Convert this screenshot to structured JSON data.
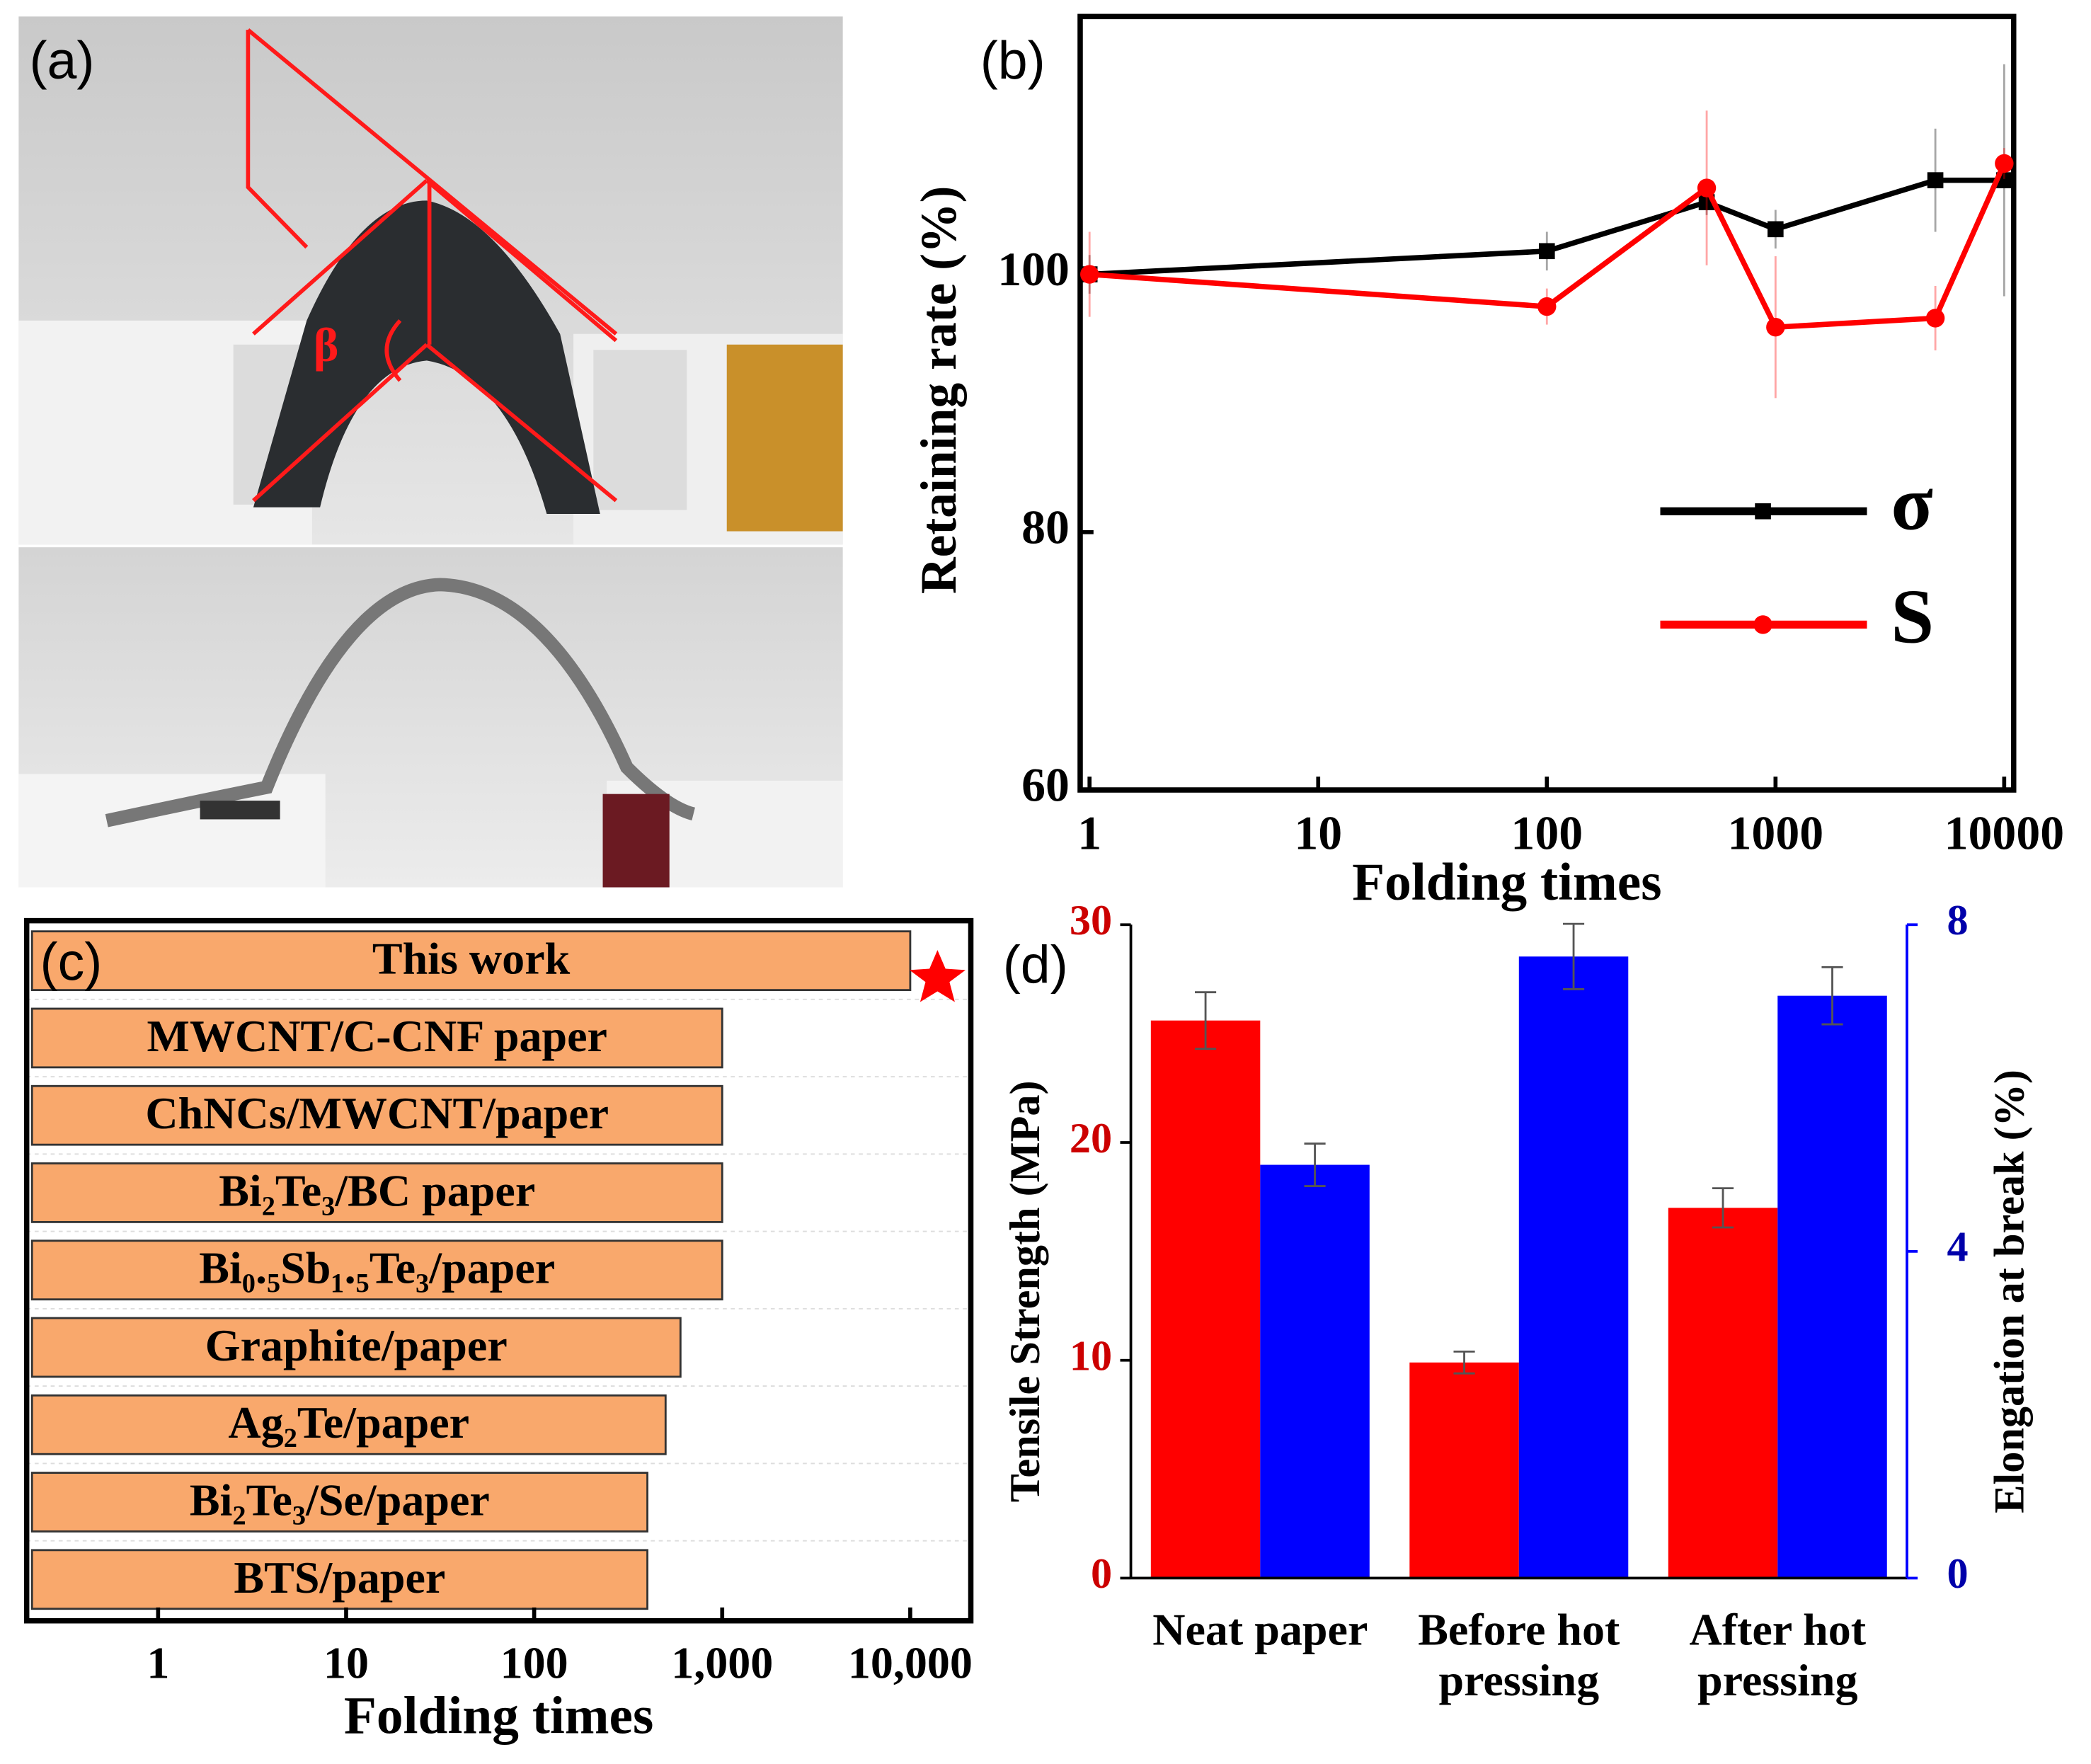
{
  "panel_a": {
    "label": "(a)",
    "angle_label": "β"
  },
  "chart_data": [
    {
      "type": "line",
      "panel_label": "(b)",
      "xlabel": "Folding times",
      "ylabel": "Retaining rate (%)",
      "xscale": "log",
      "x": [
        1,
        100,
        500,
        1000,
        5000,
        10000
      ],
      "series": [
        {
          "name": "σ",
          "color": "#000000",
          "marker": "square",
          "values": [
            100,
            101.8,
            105.6,
            103.5,
            107.3,
            107.3
          ],
          "errors": [
            1.5,
            1.5,
            1,
            1.5,
            4,
            9
          ]
        },
        {
          "name": "S",
          "color": "#ff0000",
          "marker": "circle",
          "values": [
            100,
            97.5,
            106.7,
            95.9,
            96.6,
            108.6
          ],
          "errors": [
            3.3,
            1.4,
            6,
            5.5,
            2.5,
            1.2
          ]
        }
      ],
      "xlim": [
        0.91,
        11000
      ],
      "ylim": [
        60,
        120
      ],
      "xticks": [
        1,
        10,
        100,
        1000,
        10000
      ],
      "yticks": [
        60,
        80,
        100
      ],
      "legend": "lower right"
    },
    {
      "type": "barh",
      "panel_label": "(c)",
      "xlabel": "Folding times",
      "xscale": "log",
      "color": "#f9a86c",
      "categories": [
        "This work",
        "MWCNT/C-CNF paper",
        "ChNCs/MWCNT/paper",
        "Bi₂Te₃/BC paper",
        "Bi₀.₅Sb₁.₅Te₃/paper",
        "Graphite/paper",
        "Ag₂Te/paper",
        "Bi₂Te₃/Se/paper",
        "BTS/paper"
      ],
      "values": [
        10000,
        1000,
        1000,
        1000,
        1000,
        600,
        500,
        400,
        400
      ],
      "xlim": [
        0.2,
        21000
      ],
      "xticks": [
        1,
        10,
        100,
        {
          "value": 1000,
          "label": "1,000"
        },
        {
          "value": 10000,
          "label": "10,000"
        }
      ]
    },
    {
      "type": "groupbar",
      "panel_label": "(d)",
      "ylabel": "Tensile Strength (MPa)",
      "y2label": "Elongation at break (%)",
      "categories": [
        "Neat paper",
        "Before hot pressing",
        "After hot pressing"
      ],
      "series": [
        {
          "name": "Tensile Strength",
          "color": "#ff0000",
          "values": [
            25.6,
            9.9,
            17
          ],
          "errors": [
            1.3,
            0.5,
            0.9
          ]
        },
        {
          "name": "Elongation at break",
          "color": "#0000ff",
          "axis": "y2",
          "values": [
            5.06,
            7.61,
            7.13
          ],
          "errors": [
            0.26,
            0.4,
            0.35
          ]
        }
      ],
      "ylim": [
        0,
        30
      ],
      "yticks": [
        0,
        10,
        20,
        30
      ],
      "y2lim": [
        0,
        8
      ],
      "y2ticks": [
        0,
        4,
        8
      ]
    }
  ]
}
